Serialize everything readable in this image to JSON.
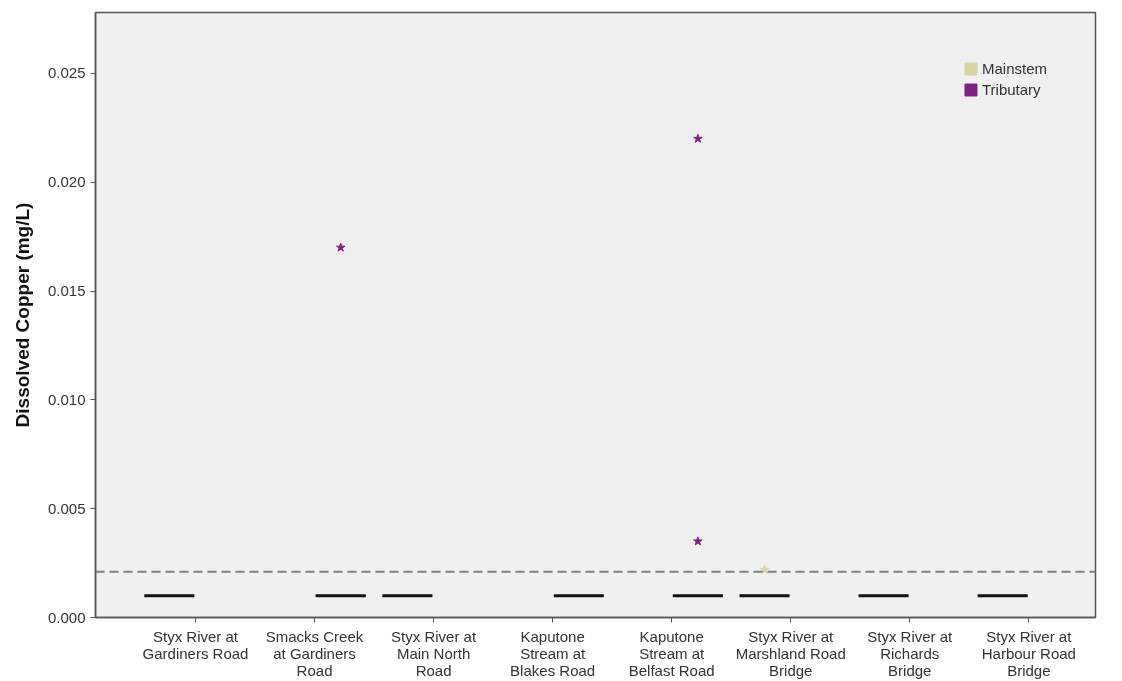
{
  "chart_data": {
    "type": "box",
    "ylabel": "Dissolved Copper (mg/L)",
    "categories": [
      "Styx River at Gardiners Road",
      "Smacks Creek at Gardiners Road",
      "Styx River at Main North Road",
      "Kaputone Stream at Blakes Road",
      "Kaputone Stream at Belfast Road",
      "Styx River at Marshland Road Bridge",
      "Styx River at Richards Bridge",
      "Styx River at Harbour Road Bridge"
    ],
    "series": [
      {
        "name": "Mainstem",
        "color": "#d6d4a0",
        "boxes": [
          {
            "low": 0.001,
            "q1": 0.001,
            "median": 0.001,
            "q3": 0.001,
            "high": 0.001
          },
          null,
          {
            "low": 0.001,
            "q1": 0.001,
            "median": 0.001,
            "q3": 0.001,
            "high": 0.001
          },
          null,
          null,
          {
            "low": 0.001,
            "q1": 0.001,
            "median": 0.001,
            "q3": 0.001,
            "high": 0.001,
            "outliers": [
              0.0022
            ]
          },
          {
            "low": 0.001,
            "q1": 0.001,
            "median": 0.001,
            "q3": 0.001,
            "high": 0.001
          },
          {
            "low": 0.001,
            "q1": 0.001,
            "median": 0.001,
            "q3": 0.001,
            "high": 0.001
          }
        ]
      },
      {
        "name": "Tributary",
        "color": "#7d2380",
        "boxes": [
          null,
          {
            "low": 0.001,
            "q1": 0.001,
            "median": 0.001,
            "q3": 0.001,
            "high": 0.001,
            "outliers": [
              0.017
            ]
          },
          null,
          {
            "low": 0.001,
            "q1": 0.001,
            "median": 0.001,
            "q3": 0.001,
            "high": 0.001
          },
          {
            "low": 0.001,
            "q1": 0.001,
            "median": 0.001,
            "q3": 0.001,
            "high": 0.001,
            "outliers": [
              0.022,
              0.0035
            ]
          },
          null,
          null,
          null
        ]
      }
    ],
    "ylim": [
      0,
      0.0278
    ],
    "yticks": [
      {
        "value": 0,
        "label": "0.000"
      },
      {
        "value": 0.005,
        "label": "0.005"
      },
      {
        "value": 0.01,
        "label": "0.010"
      },
      {
        "value": 0.015,
        "label": "0.015"
      },
      {
        "value": 0.02,
        "label": "0.020"
      },
      {
        "value": 0.025,
        "label": "0.025"
      }
    ],
    "ref_lines": [
      {
        "axis": "y",
        "value": 0.0021,
        "color": "#7f7f7f",
        "line_style": "dashed"
      }
    ],
    "grid": false,
    "legend": "top right",
    "marker": "star"
  }
}
